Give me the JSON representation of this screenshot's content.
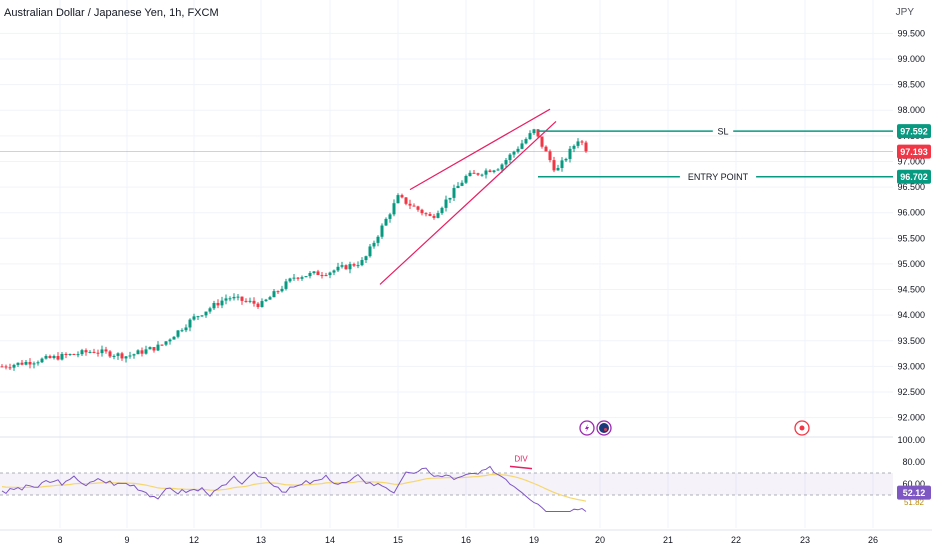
{
  "header": {
    "symbol_title": "Australian Dollar / Japanese Yen, 1h, FXCM",
    "currency": "JPY"
  },
  "colors": {
    "up": "#089981",
    "down": "#f23645",
    "wedge": "#e91e63",
    "level": "#089981",
    "rsi_line": "#7e57c2",
    "rsi_ma": "#f5d76e",
    "axis_text": "#131722",
    "grid": "#f0f3fa"
  },
  "price_axis": {
    "ticks": [
      "99.500",
      "99.000",
      "98.500",
      "98.000",
      "97.500",
      "97.000",
      "96.500",
      "96.000",
      "95.500",
      "95.000",
      "94.500",
      "94.000",
      "93.500",
      "93.000",
      "92.500",
      "92.000"
    ]
  },
  "rsi_axis": {
    "ticks": [
      "100.00",
      "80.00",
      "60.00"
    ]
  },
  "time_axis": {
    "ticks": [
      "8",
      "9",
      "12",
      "13",
      "14",
      "15",
      "16",
      "19",
      "20",
      "21",
      "22",
      "23",
      "26"
    ]
  },
  "levels": {
    "sl": {
      "label": "SL",
      "price": "97.592"
    },
    "entry": {
      "label": "ENTRY POINT",
      "price": "96.702"
    },
    "current": {
      "price": "97.193"
    }
  },
  "rsi": {
    "value": "52.12",
    "ma_value": "51.82",
    "divergence_label": "DIV"
  },
  "chart_data": {
    "type": "candlestick",
    "title": "Australian Dollar / Japanese Yen, 1h, FXCM",
    "interval": "1h",
    "currency": "JPY",
    "y_range": [
      91.7,
      99.8
    ],
    "rsi_range": [
      20,
      100
    ],
    "anchors": [
      {
        "x": "8",
        "y": 93.0
      },
      {
        "x": "8",
        "y": 93.3
      },
      {
        "x": "9",
        "y": 93.2
      },
      {
        "x": "9",
        "y": 93.4
      },
      {
        "x": "12",
        "y": 93.95
      },
      {
        "x": "12",
        "y": 94.35
      },
      {
        "x": "13",
        "y": 94.2
      },
      {
        "x": "13",
        "y": 94.75
      },
      {
        "x": "14",
        "y": 94.85
      },
      {
        "x": "14",
        "y": 95.05
      },
      {
        "x": "15",
        "y": 96.3
      },
      {
        "x": "15",
        "y": 95.9
      },
      {
        "x": "16",
        "y": 96.7
      },
      {
        "x": "16",
        "y": 96.9
      },
      {
        "x": "19",
        "y": 97.6
      },
      {
        "x": "19",
        "y": 96.8
      },
      {
        "x": "19",
        "y": 97.45
      },
      {
        "x": "20",
        "y": 97.193
      }
    ],
    "rsi_reference_lines": [
      70,
      50
    ]
  }
}
